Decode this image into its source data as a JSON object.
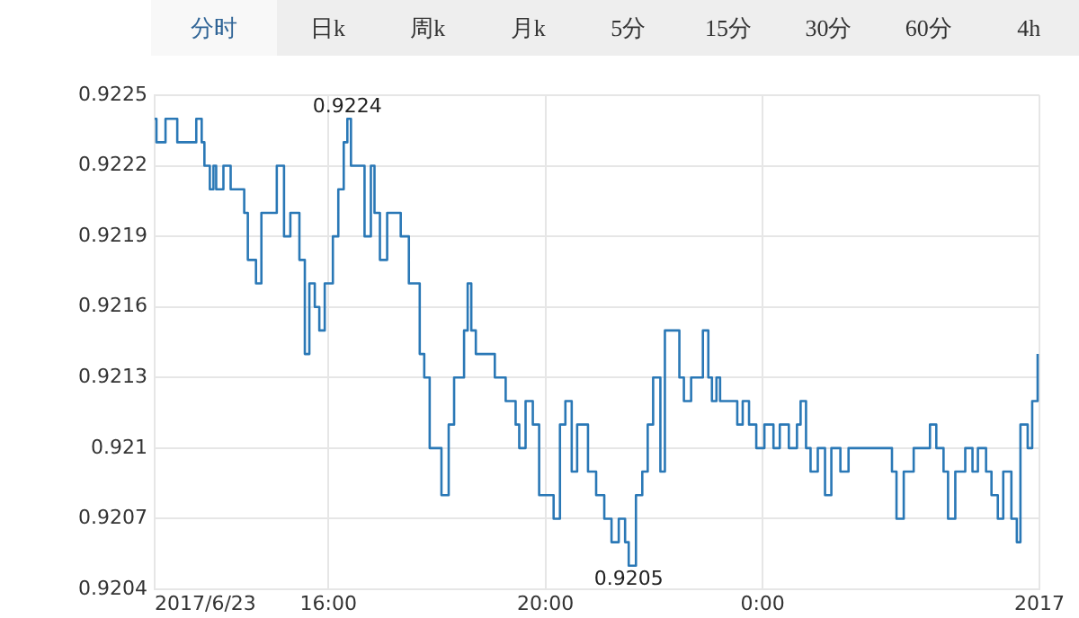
{
  "chart_data": {
    "type": "step",
    "color": "#2a78b6",
    "x": [
      "2017-06-23T12:48",
      "2017-06-23T12:50",
      "2017-06-23T13:00",
      "2017-06-23T13:02",
      "2017-06-23T13:13",
      "2017-06-23T13:25",
      "2017-06-23T13:34",
      "2017-06-23T13:40",
      "2017-06-23T13:43",
      "2017-06-23T13:49",
      "2017-06-23T13:53",
      "2017-06-23T13:56",
      "2017-06-23T14:04",
      "2017-06-23T14:12",
      "2017-06-23T14:21",
      "2017-06-23T14:27",
      "2017-06-23T14:31",
      "2017-06-23T14:37",
      "2017-06-23T14:40",
      "2017-06-23T14:46",
      "2017-06-23T14:55",
      "2017-06-23T15:03",
      "2017-06-23T15:11",
      "2017-06-23T15:18",
      "2017-06-23T15:28",
      "2017-06-23T15:34",
      "2017-06-23T15:39",
      "2017-06-23T15:45",
      "2017-06-23T15:50",
      "2017-06-23T15:56",
      "2017-06-23T16:05",
      "2017-06-23T16:11",
      "2017-06-23T16:17",
      "2017-06-23T16:21",
      "2017-06-23T16:25",
      "2017-06-23T16:38",
      "2017-06-23T16:40",
      "2017-06-23T16:47",
      "2017-06-23T16:51",
      "2017-06-23T16:57",
      "2017-06-23T17:05",
      "2017-06-23T17:16",
      "2017-06-23T17:20",
      "2017-06-23T17:29",
      "2017-06-23T17:41",
      "2017-06-23T17:46",
      "2017-06-23T17:52",
      "2017-06-23T17:59",
      "2017-06-23T18:05",
      "2017-06-23T18:13",
      "2017-06-23T18:19",
      "2017-06-23T18:30",
      "2017-06-23T18:34",
      "2017-06-23T18:38",
      "2017-06-23T18:43",
      "2017-06-23T18:51",
      "2017-06-23T19:04",
      "2017-06-23T19:16",
      "2017-06-23T19:27",
      "2017-06-23T19:31",
      "2017-06-23T19:38",
      "2017-06-23T19:46",
      "2017-06-23T19:53",
      "2017-06-23T20:03",
      "2017-06-23T20:09",
      "2017-06-23T20:16",
      "2017-06-23T20:22",
      "2017-06-23T20:29",
      "2017-06-23T20:35",
      "2017-06-23T20:47",
      "2017-06-23T20:56",
      "2017-06-23T21:05",
      "2017-06-23T21:13",
      "2017-06-23T21:21",
      "2017-06-23T21:28",
      "2017-06-23T21:32",
      "2017-06-23T21:40",
      "2017-06-23T21:47",
      "2017-06-23T21:53",
      "2017-06-23T21:59",
      "2017-06-23T22:07",
      "2017-06-23T22:12",
      "2017-06-23T22:22",
      "2017-06-23T22:28",
      "2017-06-23T22:33",
      "2017-06-23T22:41",
      "2017-06-23T22:50",
      "2017-06-23T22:54",
      "2017-06-23T23:00",
      "2017-06-23T23:04",
      "2017-06-23T23:09",
      "2017-06-23T23:13",
      "2017-06-23T23:32",
      "2017-06-23T23:38",
      "2017-06-23T23:45",
      "2017-06-23T23:53",
      "2017-06-24T00:02",
      "2017-06-24T00:12",
      "2017-06-24T00:19",
      "2017-06-24T00:29",
      "2017-06-24T00:38",
      "2017-06-24T00:42",
      "2017-06-24T00:48",
      "2017-06-24T00:53",
      "2017-06-24T01:01",
      "2017-06-24T01:09",
      "2017-06-24T01:16",
      "2017-06-24T01:26",
      "2017-06-24T01:35",
      "2017-06-24T02:23",
      "2017-06-24T02:28",
      "2017-06-24T02:36",
      "2017-06-24T02:47",
      "2017-06-24T03:05",
      "2017-06-24T03:12",
      "2017-06-24T03:20",
      "2017-06-24T03:25",
      "2017-06-24T03:33",
      "2017-06-24T03:44",
      "2017-06-24T03:52",
      "2017-06-24T03:58",
      "2017-06-24T04:07",
      "2017-06-24T04:13",
      "2017-06-24T04:20",
      "2017-06-24T04:26",
      "2017-06-24T04:35",
      "2017-06-24T04:41",
      "2017-06-24T04:45",
      "2017-06-24T04:53",
      "2017-06-24T04:58",
      "2017-06-24T05:04"
    ],
    "values": [
      0.9224,
      0.9223,
      0.9224,
      0.9224,
      0.9223,
      0.9223,
      0.9224,
      0.9223,
      0.9222,
      0.9221,
      0.9222,
      0.9221,
      0.9222,
      0.9221,
      0.9221,
      0.922,
      0.9218,
      0.9218,
      0.9217,
      0.922,
      0.922,
      0.9222,
      0.9219,
      0.922,
      0.9218,
      0.9214,
      0.9217,
      0.9216,
      0.9215,
      0.9217,
      0.9219,
      0.9221,
      0.9223,
      0.9224,
      0.9222,
      0.9222,
      0.9219,
      0.9222,
      0.922,
      0.9218,
      0.922,
      0.922,
      0.9219,
      0.9217,
      0.9214,
      0.9213,
      0.921,
      0.921,
      0.9208,
      0.9211,
      0.9213,
      0.9215,
      0.9217,
      0.9215,
      0.9214,
      0.9214,
      0.9213,
      0.9212,
      0.9211,
      0.921,
      0.9212,
      0.9211,
      0.9208,
      0.9208,
      0.9207,
      0.9211,
      0.9212,
      0.9209,
      0.9211,
      0.9209,
      0.9208,
      0.9207,
      0.9206,
      0.9207,
      0.9206,
      0.9205,
      0.9208,
      0.9209,
      0.9211,
      0.9213,
      0.9209,
      0.9215,
      0.9215,
      0.9213,
      0.9212,
      0.9213,
      0.9213,
      0.9215,
      0.9213,
      0.9212,
      0.9213,
      0.9212,
      0.9211,
      0.9212,
      0.9211,
      0.921,
      0.9211,
      0.921,
      0.9211,
      0.921,
      0.9211,
      0.9212,
      0.921,
      0.9209,
      0.921,
      0.9208,
      0.921,
      0.9209,
      0.921,
      0.9209,
      0.9207,
      0.9209,
      0.921,
      0.9211,
      0.921,
      0.9209,
      0.9207,
      0.9209,
      0.921,
      0.9209,
      0.921,
      0.9209,
      0.9208,
      0.9207,
      0.9209,
      0.9207,
      0.9206,
      0.9211,
      0.921,
      0.9212,
      0.9214
    ],
    "xlim": [
      "2017-06-23T12:48",
      "2017-06-24T05:06"
    ],
    "xticks": [
      {
        "value": "2017-06-23T12:48",
        "label": "2017/6/23"
      },
      {
        "value": "2017-06-23T16:00",
        "label": "16:00"
      },
      {
        "value": "2017-06-23T20:00",
        "label": "20:00"
      },
      {
        "value": "2017-06-24T00:00",
        "label": "0:00"
      },
      {
        "value": "2017-06-24T05:06",
        "label": "2017"
      }
    ],
    "ylim": [
      0.9204,
      0.9225
    ],
    "yticks": [
      0.9204,
      0.9207,
      0.921,
      0.9213,
      0.9216,
      0.9219,
      0.9222,
      0.9225
    ],
    "grid": true,
    "annotations": [
      "分时",
      "日k",
      "周k",
      "月k",
      "5分",
      "15分",
      "30分",
      "60分",
      "4h",
      {
        "text": "0.9224",
        "x": "2017-06-23T16:21",
        "y": 0.9224
      },
      {
        "text": "0.9205",
        "x": "2017-06-23T21:32",
        "y": 0.9205
      }
    ]
  }
}
